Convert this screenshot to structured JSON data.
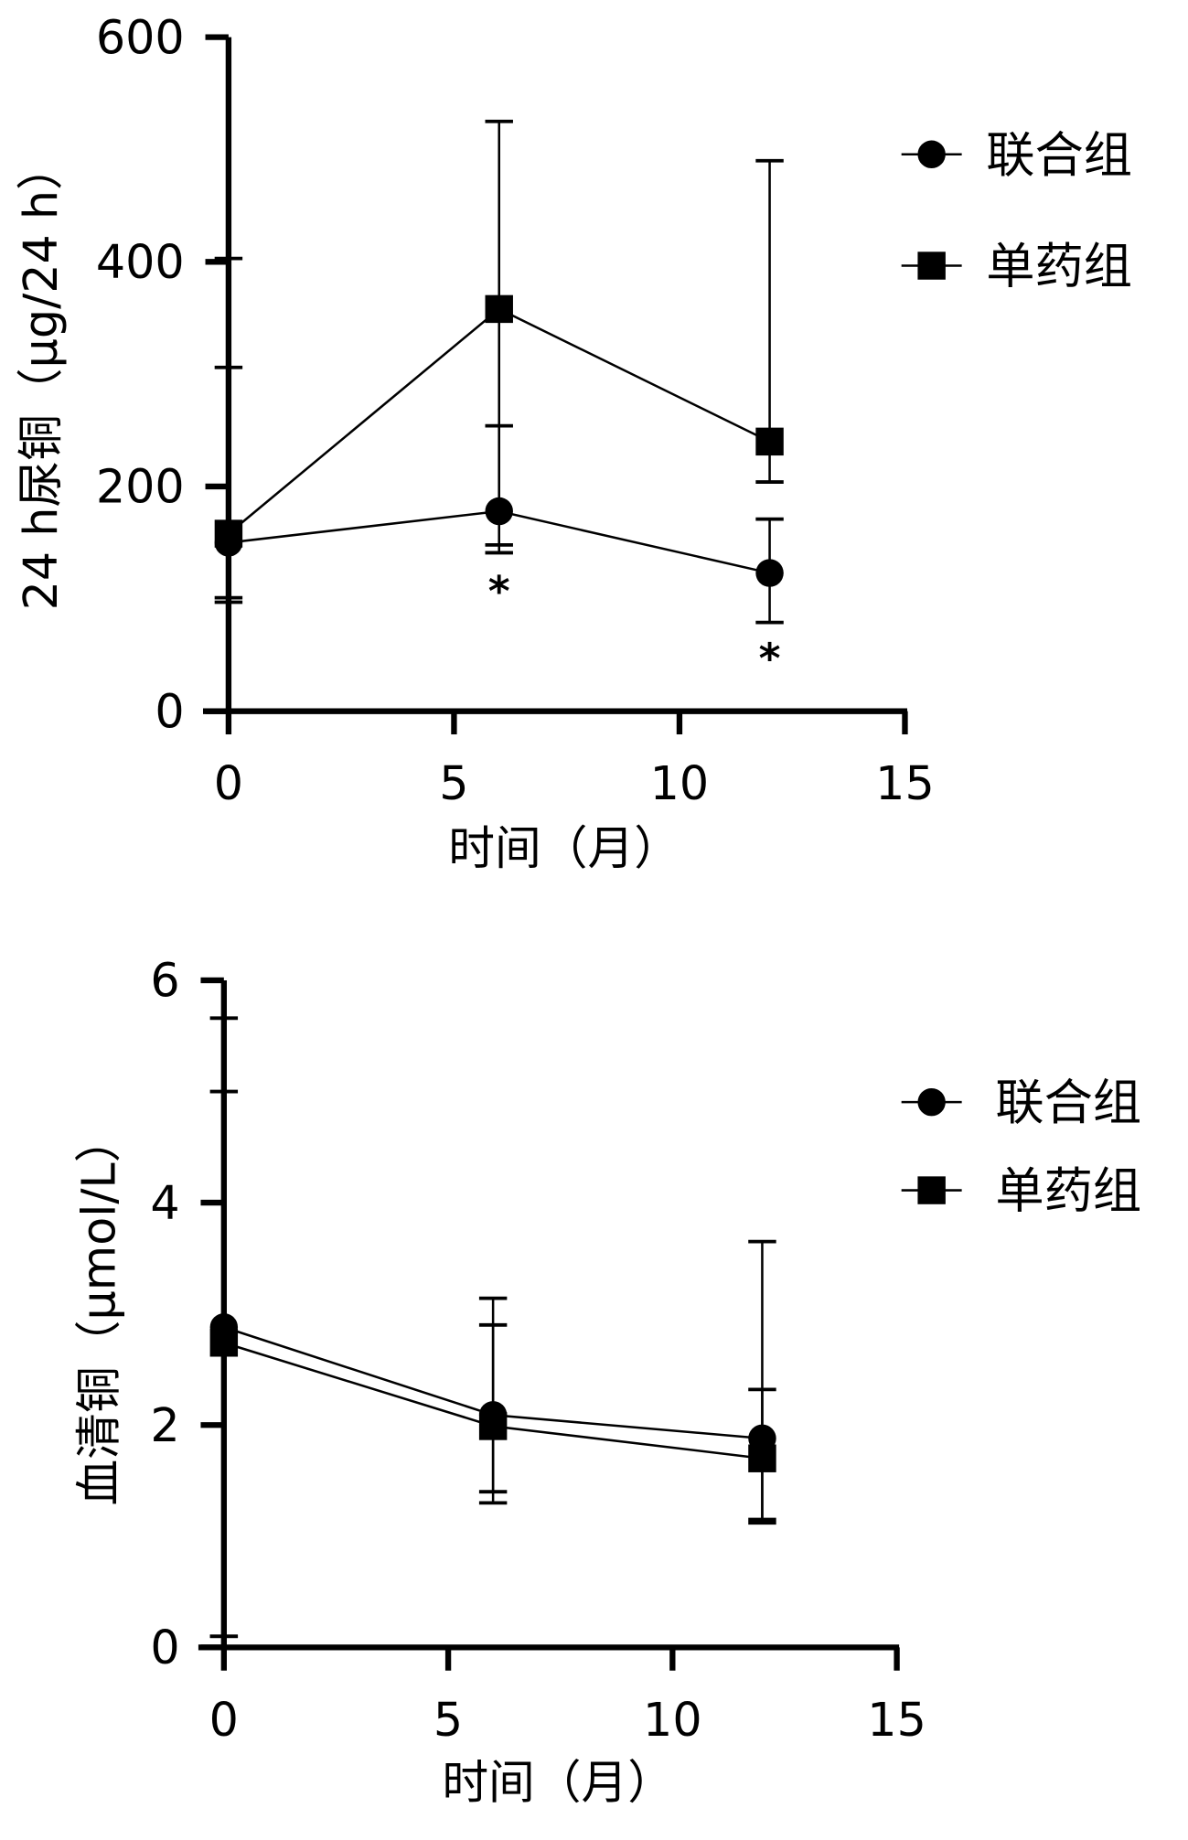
{
  "chart_data": [
    {
      "type": "line",
      "title": "",
      "xlabel": "时间（月）",
      "ylabel": "24 h尿铜（μg/24 h）",
      "xlim": [
        0,
        15
      ],
      "ylim": [
        0,
        600
      ],
      "xticks": [
        "0",
        "5",
        "10",
        "15"
      ],
      "yticks": [
        "0",
        "200",
        "400",
        "600"
      ],
      "grid": false,
      "legend_position": "top-right",
      "x": [
        0,
        6,
        12
      ],
      "series": [
        {
          "name": "联合组",
          "marker": "circle",
          "values": [
            150,
            178,
            123
          ],
          "err_low": [
            101,
            148,
            79
          ],
          "err_high": [
            306,
            254,
            171
          ]
        },
        {
          "name": "单药组",
          "marker": "square",
          "values": [
            158,
            358,
            240
          ],
          "err_low": [
            97,
            141,
            204
          ],
          "err_high": [
            403,
            525,
            490
          ]
        }
      ],
      "annotations": [
        {
          "text": "*",
          "x": 6,
          "y": 115
        },
        {
          "text": "*",
          "x": 12,
          "y": 55
        }
      ]
    },
    {
      "type": "line",
      "title": "",
      "xlabel": "时间（月）",
      "ylabel": "血清铜（μmol/L）",
      "xlim": [
        0,
        15
      ],
      "ylim": [
        0,
        6
      ],
      "xticks": [
        "0",
        "5",
        "10",
        "15"
      ],
      "yticks": [
        "0",
        "2",
        "4",
        "6"
      ],
      "grid": false,
      "legend_position": "right",
      "x": [
        0,
        6,
        12
      ],
      "series": [
        {
          "name": "联合组",
          "marker": "circle",
          "values": [
            2.88,
            2.09,
            1.88
          ],
          "err_low": [
            0.1,
            1.4,
            1.15
          ],
          "err_high": [
            5.66,
            3.14,
            3.65
          ]
        },
        {
          "name": "单药组",
          "marker": "square",
          "values": [
            2.74,
            1.99,
            1.7
          ],
          "err_low": [
            0.1,
            1.3,
            1.12
          ],
          "err_high": [
            5.0,
            2.9,
            2.32
          ]
        }
      ],
      "annotations": []
    }
  ]
}
